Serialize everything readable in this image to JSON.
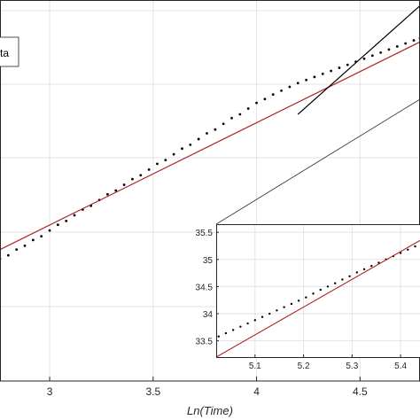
{
  "chart_data": [
    {
      "type": "scatter",
      "title": "",
      "xlabel": "Ln(Time)",
      "ylabel": "",
      "xlim": [
        2.76,
        4.79
      ],
      "ylim": [
        0,
        1
      ],
      "xticks": [
        3,
        3.5,
        4,
        4.5
      ],
      "tick_labels_x": [
        "3",
        "3.5",
        "4",
        "4.5"
      ],
      "grid": true,
      "legend": {
        "placement": "top-left",
        "entries": [
          "ta"
        ]
      },
      "series": [
        {
          "kind": "points",
          "color": "#000000",
          "x": [
            2.76,
            2.8,
            2.84,
            2.88,
            2.92,
            2.96,
            3.0,
            3.04,
            3.08,
            3.12,
            3.16,
            3.2,
            3.24,
            3.28,
            3.32,
            3.36,
            3.4,
            3.44,
            3.48,
            3.52,
            3.56,
            3.6,
            3.64,
            3.68,
            3.72,
            3.76,
            3.8,
            3.84,
            3.88,
            3.92,
            3.96,
            4.0,
            4.04,
            4.08,
            4.12,
            4.16,
            4.2,
            4.24,
            4.28,
            4.32,
            4.36,
            4.4,
            4.44,
            4.48,
            4.52,
            4.56,
            4.6,
            4.64,
            4.68,
            4.72,
            4.76,
            4.79
          ],
          "y": [
            0.32,
            0.33,
            0.345,
            0.355,
            0.37,
            0.38,
            0.395,
            0.41,
            0.42,
            0.435,
            0.45,
            0.46,
            0.475,
            0.49,
            0.5,
            0.515,
            0.53,
            0.54,
            0.555,
            0.57,
            0.58,
            0.595,
            0.61,
            0.62,
            0.635,
            0.65,
            0.66,
            0.675,
            0.69,
            0.7,
            0.715,
            0.73,
            0.74,
            0.752,
            0.762,
            0.772,
            0.782,
            0.79,
            0.798,
            0.806,
            0.814,
            0.822,
            0.83,
            0.838,
            0.846,
            0.854,
            0.862,
            0.87,
            0.878,
            0.886,
            0.894,
            0.9
          ]
        },
        {
          "kind": "line",
          "color": "#b22222",
          "x": [
            2.76,
            4.79
          ],
          "y": [
            0.345,
            0.89
          ]
        },
        {
          "kind": "line",
          "color": "#000000",
          "x": [
            4.2,
            4.79
          ],
          "y": [
            0.7,
            0.985
          ]
        }
      ]
    },
    {
      "type": "scatter",
      "title": "",
      "xlabel": "",
      "ylabel": "",
      "xlim": [
        5.02,
        5.44
      ],
      "ylim": [
        33.2,
        35.65
      ],
      "xticks": [
        5.1,
        5.2,
        5.3,
        5.4
      ],
      "tick_labels_x": [
        "5.1",
        "5.2",
        "5.3",
        "5.4"
      ],
      "yticks": [
        33.5,
        34,
        34.5,
        35,
        35.5
      ],
      "tick_labels_y": [
        "33.5",
        "34",
        "34.5",
        "35",
        "35.5"
      ],
      "grid": true,
      "series": [
        {
          "kind": "points",
          "color": "#000000",
          "x": [
            5.025,
            5.04,
            5.055,
            5.07,
            5.085,
            5.1,
            5.115,
            5.13,
            5.145,
            5.16,
            5.175,
            5.19,
            5.205,
            5.22,
            5.235,
            5.25,
            5.265,
            5.28,
            5.295,
            5.31,
            5.325,
            5.34,
            5.355,
            5.37,
            5.385,
            5.4,
            5.415,
            5.43
          ],
          "y": [
            33.58,
            33.64,
            33.7,
            33.76,
            33.82,
            33.88,
            33.94,
            34.0,
            34.06,
            34.12,
            34.18,
            34.24,
            34.3,
            34.37,
            34.44,
            34.5,
            34.56,
            34.63,
            34.69,
            34.76,
            34.82,
            34.88,
            34.94,
            35.0,
            35.06,
            35.12,
            35.18,
            35.24
          ]
        },
        {
          "kind": "line",
          "color": "#b22222",
          "x": [
            5.02,
            5.44
          ],
          "y": [
            33.2,
            35.35
          ]
        }
      ]
    }
  ]
}
